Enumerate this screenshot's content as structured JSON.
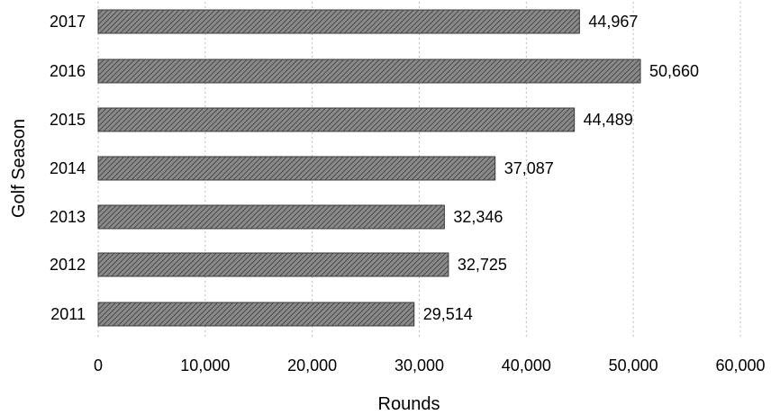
{
  "chart_data": {
    "type": "bar",
    "orientation": "horizontal",
    "categories": [
      "2017",
      "2016",
      "2015",
      "2014",
      "2013",
      "2012",
      "2011"
    ],
    "values": [
      44967,
      50660,
      44489,
      37087,
      32346,
      32725,
      29514
    ],
    "data_labels": [
      "44,967",
      "50,660",
      "44,489",
      "37,087",
      "32,346",
      "32,725",
      "29,514"
    ],
    "title": "",
    "xlabel": "Rounds",
    "ylabel": "Golf Season",
    "xlim": [
      0,
      60000
    ],
    "xticks": [
      0,
      10000,
      20000,
      30000,
      40000,
      50000,
      60000
    ],
    "xtick_labels": [
      "0",
      "10,000",
      "20,000",
      "30,000",
      "40,000",
      "50,000",
      "60,000"
    ],
    "grid": true,
    "legend": "none",
    "bar_color": "#6e6e6e"
  }
}
